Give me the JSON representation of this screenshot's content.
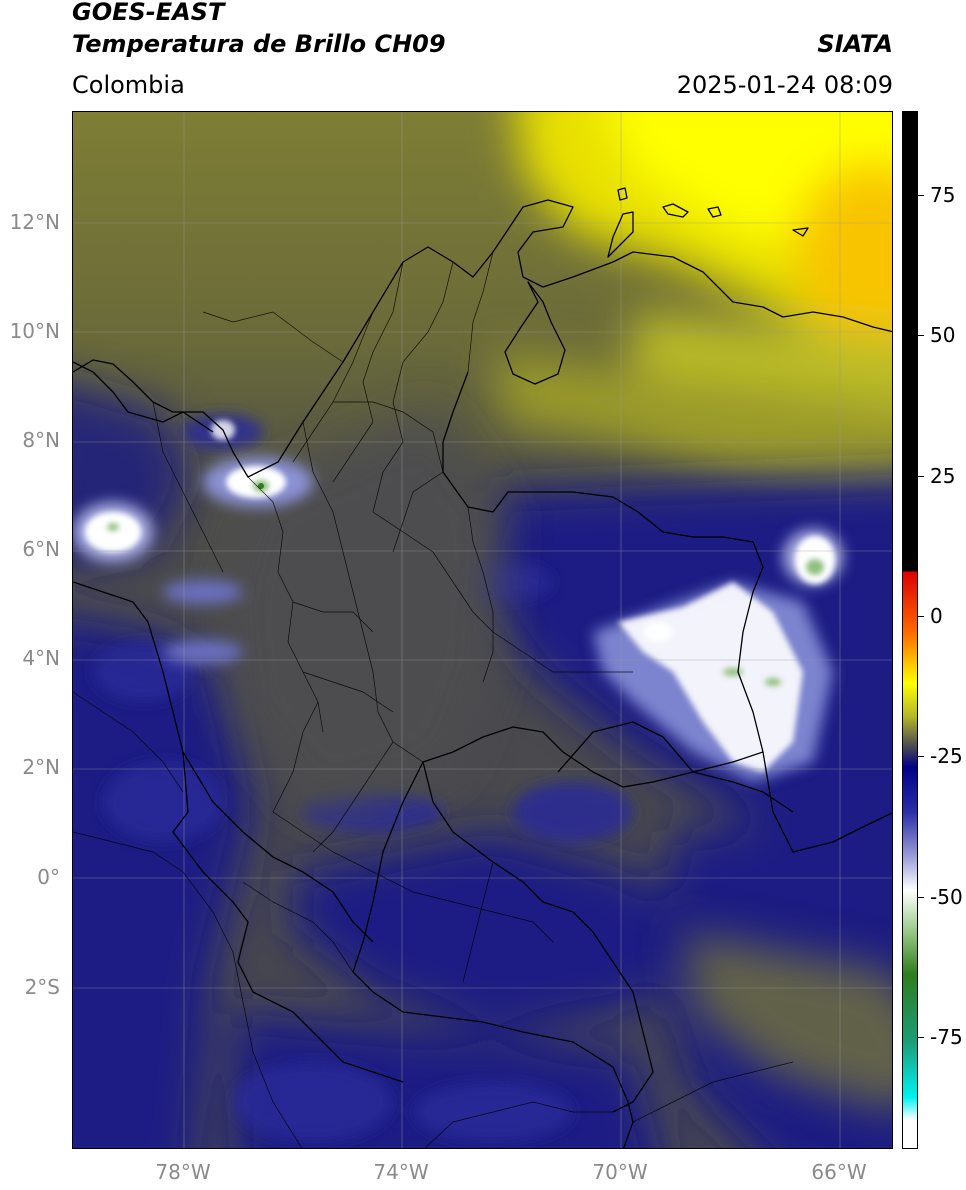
{
  "header": {
    "satellite": "GOES-EAST",
    "product": "Temperatura de Brillo CH09",
    "region": "Colombia",
    "agency": "SIATA",
    "datetime": "2025-01-24 08:09"
  },
  "axes": {
    "lat_labels": [
      "12°N",
      "10°N",
      "8°N",
      "6°N",
      "4°N",
      "2°N",
      "0°",
      "2°S"
    ],
    "lon_labels": [
      "78°W",
      "74°W",
      "70°W",
      "66°W"
    ]
  },
  "colorbar": {
    "labels": [
      "75",
      "50",
      "25",
      "0",
      "-25",
      "-50",
      "-75"
    ],
    "values": [
      75,
      50,
      25,
      0,
      -25,
      -50,
      -75
    ],
    "range": [
      -95,
      90
    ],
    "stops": [
      {
        "v": 90,
        "c": "#000000"
      },
      {
        "v": 8,
        "c": "#000000"
      },
      {
        "v": 7.9,
        "c": "#dd0000"
      },
      {
        "v": -3,
        "c": "#ff6a00"
      },
      {
        "v": -12,
        "c": "#ffff00"
      },
      {
        "v": -18,
        "c": "#b5b52a"
      },
      {
        "v": -23,
        "c": "#505050"
      },
      {
        "v": -27,
        "c": "#000088"
      },
      {
        "v": -35,
        "c": "#2b2fa8"
      },
      {
        "v": -43,
        "c": "#9a9fd6"
      },
      {
        "v": -49,
        "c": "#ffffff"
      },
      {
        "v": -56,
        "c": "#9ccc8c"
      },
      {
        "v": -64,
        "c": "#2e7d1e"
      },
      {
        "v": -76,
        "c": "#1a9e78"
      },
      {
        "v": -86,
        "c": "#00f2f2"
      },
      {
        "v": -90,
        "c": "#ffffff"
      },
      {
        "v": -95,
        "c": "#ffffff"
      }
    ]
  },
  "colors": {
    "dark_blue": "#15177f",
    "grey": "#4f4f4f",
    "olive": "#7a7a34",
    "yellow": "#f2ef00",
    "orange": "#f6b500"
  }
}
